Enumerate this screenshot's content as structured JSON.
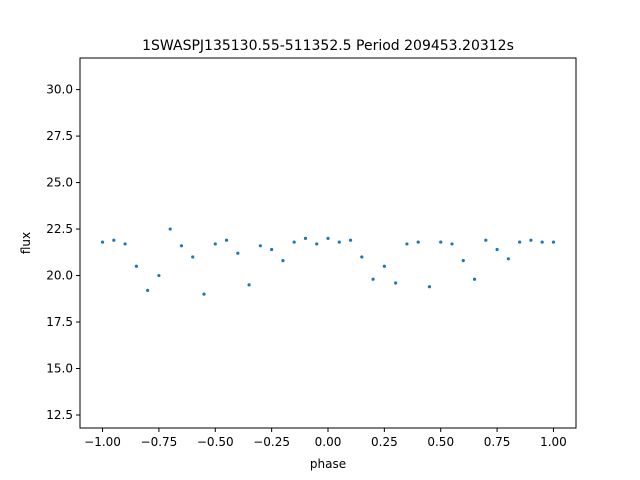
{
  "chart_data": {
    "type": "scatter",
    "title": "1SWASPJ135130.55-511352.5 Period 209453.20312s",
    "xlabel": "phase",
    "ylabel": "flux",
    "xlim": [
      -1.1,
      1.1
    ],
    "ylim": [
      11.8,
      31.7
    ],
    "xticks": [
      -1.0,
      -0.75,
      -0.5,
      -0.25,
      0.0,
      0.25,
      0.5,
      0.75,
      1.0
    ],
    "xtick_labels": [
      "−1.00",
      "−0.75",
      "−0.50",
      "−0.25",
      "0.00",
      "0.25",
      "0.50",
      "0.75",
      "1.00"
    ],
    "yticks": [
      12.5,
      15.0,
      17.5,
      20.0,
      22.5,
      25.0,
      27.5,
      30.0
    ],
    "ytick_labels": [
      "12.5",
      "15.0",
      "17.5",
      "20.0",
      "22.5",
      "25.0",
      "27.5",
      "30.0"
    ],
    "marker_color": "#1f77b4",
    "grid": false,
    "series": [
      {
        "x": [
          -1.0,
          -0.95,
          -0.9,
          -0.85,
          -0.8,
          -0.75,
          -0.7,
          -0.65,
          -0.6,
          -0.55,
          -0.5,
          -0.45,
          -0.4,
          -0.35,
          -0.3,
          -0.25,
          -0.2,
          -0.15,
          -0.1,
          -0.05,
          0.0,
          0.05,
          0.1,
          0.15,
          0.2,
          0.25,
          0.3,
          0.35,
          0.4,
          0.45,
          0.5,
          0.55,
          0.6,
          0.65,
          0.7,
          0.75,
          0.8,
          0.85,
          0.9,
          0.95,
          1.0
        ],
        "y": [
          21.8,
          21.9,
          21.7,
          20.5,
          19.2,
          20.0,
          22.5,
          21.6,
          21.0,
          19.0,
          21.7,
          21.9,
          21.2,
          19.5,
          21.6,
          21.4,
          20.8,
          21.8,
          22.0,
          21.7,
          22.0,
          21.8,
          21.9,
          21.0,
          19.8,
          20.5,
          19.6,
          21.7,
          21.8,
          19.4,
          21.8,
          21.7,
          20.8,
          19.8,
          21.9,
          21.4,
          20.9,
          21.8,
          21.9,
          21.8,
          21.8
        ]
      }
    ]
  }
}
